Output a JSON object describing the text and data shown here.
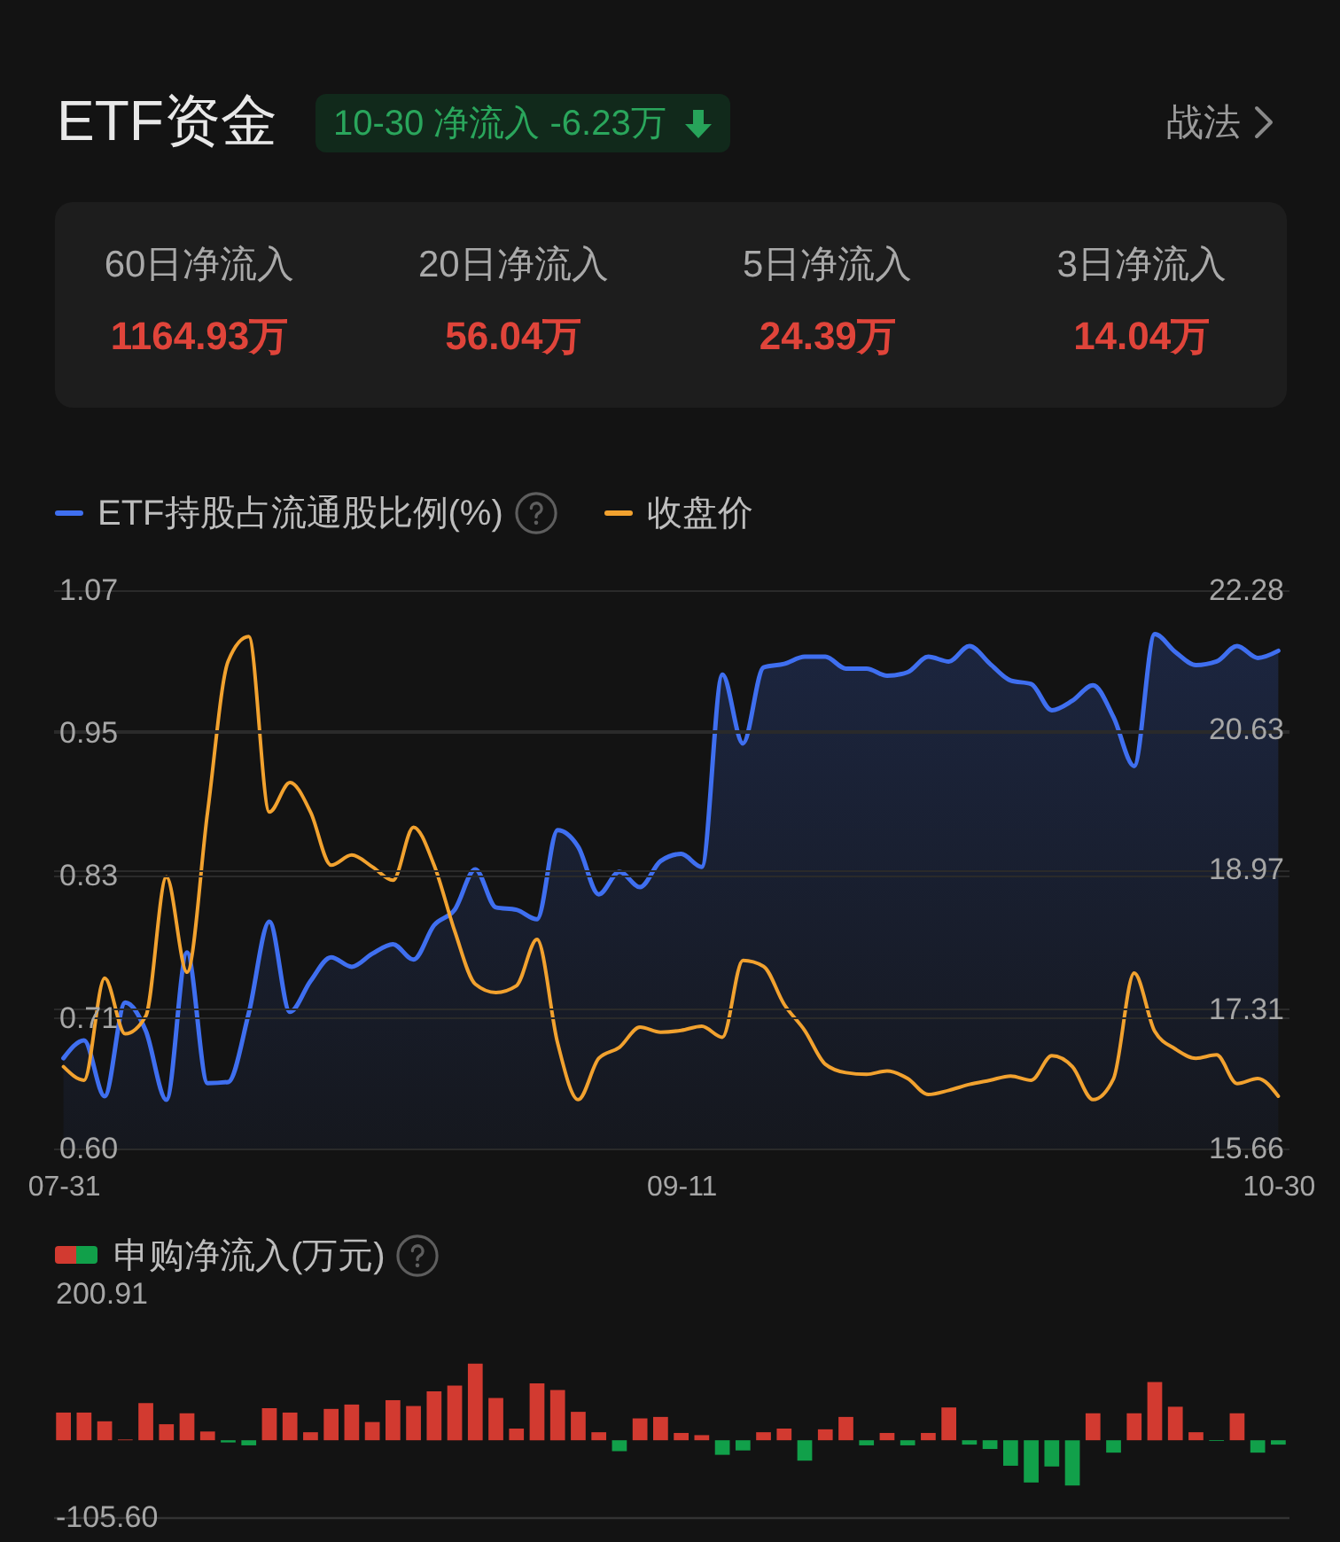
{
  "chart_data": [
    {
      "type": "other",
      "title": "ETF资金",
      "annotations": [
        "10-30 净流入 -6.23万",
        "战法",
        "60日净流入",
        "1164.93万",
        "20日净流入",
        "56.04万",
        "5日净流入",
        "24.39万",
        "3日净流入",
        "14.04万"
      ]
    },
    {
      "type": "line",
      "categories": [
        "07-31",
        null,
        null,
        null,
        null,
        null,
        null,
        null,
        null,
        null,
        null,
        null,
        null,
        null,
        null,
        null,
        null,
        null,
        null,
        null,
        null,
        null,
        null,
        null,
        null,
        null,
        null,
        null,
        null,
        null,
        "09-11",
        null,
        null,
        null,
        null,
        null,
        null,
        null,
        null,
        null,
        null,
        null,
        null,
        null,
        null,
        null,
        null,
        null,
        null,
        null,
        null,
        null,
        null,
        null,
        null,
        null,
        null,
        null,
        null,
        "10-30"
      ],
      "series": [
        {
          "name": "ETF持股占流通股比例(%)",
          "type": "area",
          "color": "#3f6ff0",
          "values": [
            0.676,
            0.691,
            0.644,
            0.723,
            0.699,
            0.641,
            0.765,
            0.655,
            0.656,
            0.714,
            0.791,
            0.715,
            0.741,
            0.761,
            0.753,
            0.764,
            0.772,
            0.759,
            0.788,
            0.801,
            0.835,
            0.803,
            0.801,
            0.793,
            0.868,
            0.854,
            0.814,
            0.833,
            0.82,
            0.842,
            0.848,
            0.837,
            0.999,
            0.941,
            1.005,
            1.008,
            1.014,
            1.014,
            1.004,
            1.004,
            0.998,
            1.001,
            1.014,
            1.01,
            1.023,
            1.008,
            0.994,
            0.991,
            0.969,
            0.977,
            0.99,
            0.963,
            0.922,
            1.033,
            1.018,
            1.007,
            1.01,
            1.023,
            1.013,
            1.019
          ]
        },
        {
          "name": "收盘价",
          "type": "line",
          "color": "#f2a22f",
          "axis": "y2",
          "values": [
            16.63,
            16.47,
            17.68,
            17.02,
            17.23,
            18.88,
            17.75,
            19.65,
            21.44,
            21.73,
            19.65,
            20.0,
            19.65,
            19.02,
            19.14,
            19.0,
            18.84,
            19.47,
            19.02,
            18.24,
            17.61,
            17.51,
            17.59,
            18.14,
            16.91,
            16.24,
            16.73,
            16.86,
            17.1,
            17.04,
            17.06,
            17.11,
            16.98,
            17.89,
            17.82,
            17.37,
            17.06,
            16.66,
            16.56,
            16.54,
            16.58,
            16.49,
            16.3,
            16.35,
            16.42,
            16.47,
            16.52,
            16.47,
            16.76,
            16.63,
            16.24,
            16.49,
            17.74,
            17.05,
            16.84,
            16.73,
            16.77,
            16.43,
            16.49,
            16.28
          ]
        }
      ],
      "ylim": [
        0.6,
        1.07
      ],
      "yticks": [
        {
          "value": 0.6,
          "label": "0.60"
        },
        0.71,
        0.83,
        0.95,
        1.07
      ],
      "y2lim": [
        15.66,
        22.28
      ],
      "y2ticks": [
        15.66,
        17.31,
        18.97,
        20.63,
        22.28
      ],
      "grid": "y",
      "legend": "top left"
    },
    {
      "type": "bar",
      "categories": [
        null,
        null,
        null,
        null,
        null,
        null,
        null,
        null,
        null,
        null,
        null,
        null,
        null,
        null,
        null,
        null,
        null,
        null,
        null,
        null,
        null,
        null,
        null,
        null,
        null,
        null,
        null,
        null,
        null,
        null,
        null,
        null,
        null,
        null,
        null,
        null,
        null,
        null,
        null,
        null,
        null,
        null,
        null,
        null,
        null,
        null,
        null,
        null,
        null,
        null,
        null,
        null,
        null,
        null,
        null,
        null,
        null,
        null,
        null,
        null
      ],
      "series": [
        {
          "name": "申购净流入(万元)",
          "values": [
            38,
            38,
            26,
            1,
            51,
            22,
            37,
            12,
            -3,
            -7,
            44,
            38,
            11,
            43,
            49,
            25,
            55,
            47,
            67,
            75,
            105,
            58,
            16,
            78,
            69,
            39,
            11,
            -15,
            30,
            32,
            10,
            7,
            -20,
            -14,
            11,
            16,
            -28,
            15,
            32,
            -7,
            10,
            -7,
            10,
            45,
            -6,
            -12,
            -35,
            -58,
            -36,
            -62,
            37,
            -17,
            37,
            80,
            46,
            11,
            -1,
            37,
            -17,
            -6
          ],
          "colors": [
            "#d23a30",
            "#d23a30",
            "#d23a30",
            "#d23a30",
            "#d23a30",
            "#d23a30",
            "#d23a30",
            "#d23a30",
            "#11a04a",
            "#11a04a",
            "#d23a30",
            "#d23a30",
            "#d23a30",
            "#d23a30",
            "#d23a30",
            "#d23a30",
            "#d23a30",
            "#d23a30",
            "#d23a30",
            "#d23a30",
            "#d23a30",
            "#d23a30",
            "#d23a30",
            "#d23a30",
            "#d23a30",
            "#d23a30",
            "#d23a30",
            "#11a04a",
            "#d23a30",
            "#d23a30",
            "#d23a30",
            "#d23a30",
            "#11a04a",
            "#11a04a",
            "#d23a30",
            "#d23a30",
            "#11a04a",
            "#d23a30",
            "#d23a30",
            "#11a04a",
            "#d23a30",
            "#11a04a",
            "#d23a30",
            "#d23a30",
            "#11a04a",
            "#11a04a",
            "#11a04a",
            "#11a04a",
            "#11a04a",
            "#11a04a",
            "#d23a30",
            "#11a04a",
            "#d23a30",
            "#d23a30",
            "#d23a30",
            "#d23a30",
            "#11a04a",
            "#d23a30",
            "#11a04a",
            "#11a04a"
          ]
        }
      ],
      "ylim": [
        -105.6,
        200.91
      ],
      "yticks": [
        {
          "value": -105.6,
          "label": "-105.60"
        },
        200.91
      ],
      "legend": "top left"
    }
  ]
}
